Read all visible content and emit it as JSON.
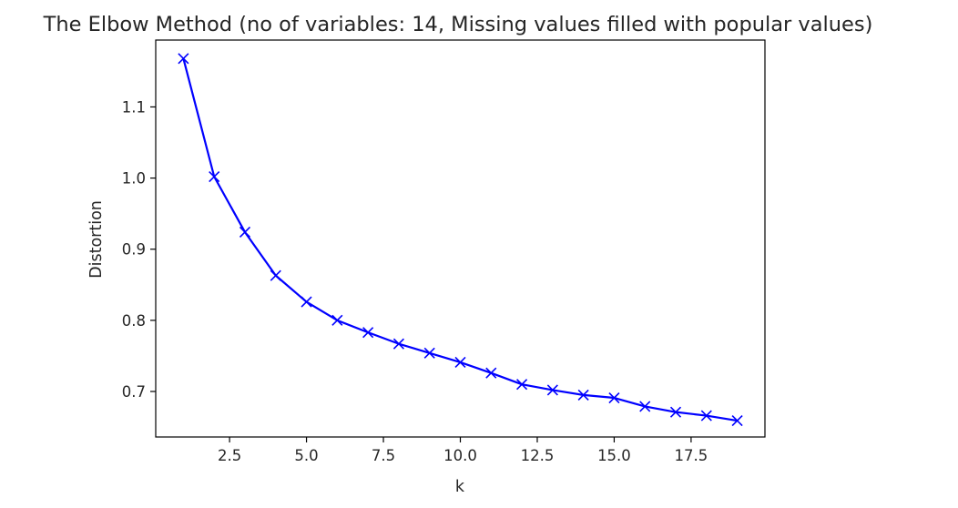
{
  "chart_data": {
    "type": "line",
    "title": "The Elbow Method (no of variables: 14, Missing values filled with popular values)",
    "xlabel": "k",
    "ylabel": "Distortion",
    "xlim": [
      0.1,
      19.9
    ],
    "ylim": [
      0.636,
      1.194
    ],
    "x_ticks": [
      2.5,
      5.0,
      7.5,
      10.0,
      12.5,
      15.0,
      17.5
    ],
    "x_tick_labels": [
      "2.5",
      "5.0",
      "7.5",
      "10.0",
      "12.5",
      "15.0",
      "17.5"
    ],
    "y_ticks": [
      0.7,
      0.8,
      0.9,
      1.0,
      1.1
    ],
    "y_tick_labels": [
      "0.7",
      "0.8",
      "0.9",
      "1.0",
      "1.1"
    ],
    "grid": false,
    "series": [
      {
        "color": "#0000ff",
        "marker": "x",
        "x": [
          1,
          2,
          3,
          4,
          5,
          6,
          7,
          8,
          9,
          10,
          11,
          12,
          13,
          14,
          15,
          16,
          17,
          18,
          19
        ],
        "y": [
          1.168,
          1.002,
          0.924,
          0.863,
          0.826,
          0.8,
          0.783,
          0.767,
          0.754,
          0.741,
          0.726,
          0.71,
          0.702,
          0.695,
          0.691,
          0.679,
          0.671,
          0.666,
          0.659
        ]
      }
    ]
  }
}
